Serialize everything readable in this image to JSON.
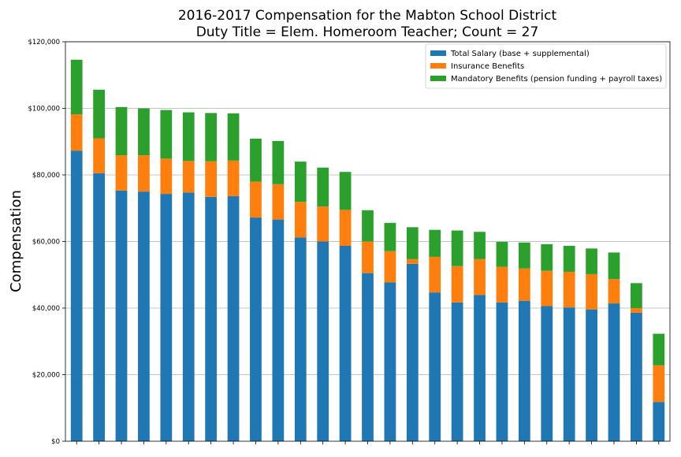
{
  "chart_data": {
    "type": "bar",
    "stacked": true,
    "title": [
      "2016-2017 Compensation for the Mabton School District",
      "Duty Title = Elem. Homeroom Teacher; Count = 27"
    ],
    "xlabel": "",
    "ylabel": "Compensation",
    "ylim": [
      0,
      120000
    ],
    "yticks": [
      0,
      20000,
      40000,
      60000,
      80000,
      100000,
      120000
    ],
    "ytick_labels": [
      "$0",
      "$20,000",
      "$40,000",
      "$60,000",
      "$80,000",
      "$100,000",
      "$120,000"
    ],
    "grid": "horizontal",
    "legend_position": "top-right",
    "series": [
      {
        "name": "Total Salary (base + supplemental)",
        "color": "#1f77b4",
        "values": [
          87300,
          80500,
          75300,
          75000,
          74300,
          74700,
          73400,
          73600,
          67200,
          66600,
          61200,
          60000,
          58700,
          50500,
          47700,
          53300,
          44700,
          41700,
          43900,
          41700,
          42200,
          40600,
          40200,
          39600,
          41400,
          38600,
          11800
        ]
      },
      {
        "name": "Insurance Benefits",
        "color": "#ff7f0e",
        "values": [
          10900,
          10500,
          10600,
          10900,
          10600,
          9500,
          10700,
          10700,
          10800,
          10600,
          10700,
          10500,
          10800,
          9500,
          9400,
          1400,
          10700,
          10900,
          10800,
          10700,
          9700,
          10600,
          10700,
          10600,
          7300,
          1400,
          11000
        ]
      },
      {
        "name": "Mandatory Benefits (pension funding + payroll taxes)",
        "color": "#2ca02c",
        "values": [
          16400,
          14600,
          14500,
          14100,
          14600,
          14600,
          14500,
          14200,
          12900,
          13000,
          12100,
          11700,
          11400,
          9400,
          8500,
          9600,
          8100,
          10700,
          8200,
          7500,
          7800,
          8000,
          7800,
          7700,
          8000,
          7500,
          9500
        ]
      }
    ]
  }
}
